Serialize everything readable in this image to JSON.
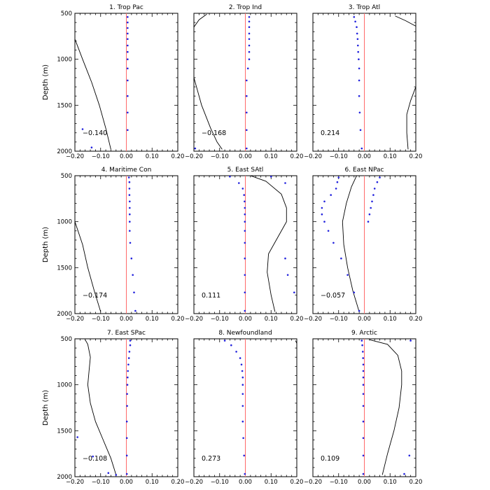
{
  "figure": {
    "ylabel": "Depth (m)",
    "xticks": [
      "−0.20",
      "−0.10",
      "0.00",
      "0.10",
      "0.20"
    ],
    "yticks": [
      "500",
      "1000",
      "1500",
      "2000"
    ]
  },
  "colors": {
    "zero_line": "#ff6a6a",
    "dots": "#2222dd",
    "curve": "#000000",
    "axes": "#000000"
  },
  "chart_data": [
    {
      "type": "line",
      "title": "1. Trop Pac",
      "annotation": "−0.140",
      "xlim": [
        -0.2,
        0.2
      ],
      "ylim": [
        2000,
        500
      ],
      "ylabel": "Depth (m)",
      "zero_line": 0,
      "series": [
        {
          "style": "line",
          "x": [
            -0.2,
            -0.17,
            -0.135,
            -0.105,
            -0.08,
            -0.06
          ],
          "y": [
            780,
            1000,
            1250,
            1500,
            1750,
            1980
          ]
        },
        {
          "style": "dots",
          "x": [
            0.005,
            0.005,
            0.005,
            0.005,
            0.005,
            0.005,
            0.005,
            0.005,
            0.005,
            0.005,
            0.005,
            0.005,
            0.005,
            -0.17,
            -0.135
          ],
          "y": [
            540,
            600,
            660,
            720,
            780,
            850,
            920,
            1000,
            1100,
            1230,
            1400,
            1580,
            1770,
            1760,
            1960
          ]
        }
      ]
    },
    {
      "type": "line",
      "title": "2. Trop Ind",
      "annotation": "−0.168",
      "xlim": [
        -0.2,
        0.2
      ],
      "ylim": [
        2000,
        500
      ],
      "ylabel": "",
      "zero_line": 0,
      "series": [
        {
          "style": "line",
          "x": [
            -0.2,
            -0.18,
            -0.15
          ],
          "y": [
            650,
            570,
            510
          ]
        },
        {
          "style": "line",
          "x": [
            -0.2,
            -0.17,
            -0.135,
            -0.11,
            -0.09
          ],
          "y": [
            1200,
            1500,
            1750,
            1900,
            1980
          ]
        },
        {
          "style": "dots",
          "x": [
            0.015,
            0.015,
            0.015,
            0.015,
            0.015,
            0.015,
            0.015,
            0.015,
            0.01,
            0.005,
            0.005,
            0.005,
            0.005,
            0.005,
            -0.195
          ],
          "y": [
            540,
            590,
            650,
            720,
            780,
            850,
            920,
            1000,
            1100,
            1230,
            1400,
            1580,
            1770,
            1970,
            1970
          ]
        }
      ]
    },
    {
      "type": "line",
      "title": "3. Trop Atl",
      "annotation": "0.214",
      "xlim": [
        -0.2,
        0.2
      ],
      "ylim": [
        2000,
        500
      ],
      "ylabel": "",
      "zero_line": 0,
      "series": [
        {
          "style": "line",
          "x": [
            0.12,
            0.16,
            0.2
          ],
          "y": [
            530,
            580,
            640
          ]
        },
        {
          "style": "line",
          "x": [
            0.2,
            0.18,
            0.165,
            0.165,
            0.17
          ],
          "y": [
            1300,
            1450,
            1600,
            1800,
            1980
          ]
        },
        {
          "style": "dots",
          "x": [
            -0.04,
            -0.035,
            -0.03,
            -0.028,
            -0.026,
            -0.025,
            -0.024,
            -0.022,
            -0.02,
            -0.02,
            -0.02,
            -0.018,
            -0.015,
            -0.01
          ],
          "y": [
            540,
            590,
            650,
            720,
            780,
            850,
            920,
            1000,
            1100,
            1230,
            1400,
            1580,
            1770,
            1970
          ]
        }
      ]
    },
    {
      "type": "line",
      "title": "4. Maritime Con",
      "annotation": "−0.174",
      "xlim": [
        -0.2,
        0.2
      ],
      "ylim": [
        2000,
        500
      ],
      "ylabel": "Depth (m)",
      "zero_line": 0,
      "series": [
        {
          "style": "line",
          "x": [
            -0.2,
            -0.17,
            -0.15,
            -0.125,
            -0.1
          ],
          "y": [
            1000,
            1250,
            1500,
            1750,
            1980
          ]
        },
        {
          "style": "dots",
          "x": [
            0.01,
            0.012,
            0.012,
            0.012,
            0.013,
            0.013,
            0.013,
            0.013,
            0.013,
            0.015,
            0.02,
            0.025,
            0.03,
            0.035
          ],
          "y": [
            520,
            570,
            640,
            710,
            780,
            850,
            920,
            1000,
            1100,
            1230,
            1400,
            1580,
            1770,
            1970
          ]
        }
      ]
    },
    {
      "type": "line",
      "title": "5. East SAtl",
      "annotation": "0.111",
      "xlim": [
        -0.2,
        0.2
      ],
      "ylim": [
        2000,
        500
      ],
      "ylabel": "",
      "zero_line": 0,
      "series": [
        {
          "style": "line",
          "x": [
            0.02,
            0.08,
            0.14,
            0.16,
            0.16,
            0.13,
            0.09,
            0.085,
            0.1,
            0.115
          ],
          "y": [
            500,
            560,
            700,
            850,
            1000,
            1150,
            1350,
            1550,
            1800,
            1980
          ]
        },
        {
          "style": "dots",
          "x": [
            -0.06,
            -0.025,
            -0.01,
            -0.005,
            -0.003,
            -0.002,
            -0.002,
            -0.002,
            -0.002,
            -0.002,
            -0.002,
            -0.002,
            -0.002,
            -0.002,
            0.1,
            0.155,
            0.155,
            0.165,
            0.19
          ],
          "y": [
            510,
            580,
            640,
            710,
            780,
            850,
            920,
            1000,
            1100,
            1230,
            1400,
            1580,
            1770,
            1970,
            510,
            580,
            1400,
            1580,
            1770
          ]
        }
      ]
    },
    {
      "type": "line",
      "title": "6. East NPac",
      "annotation": "−0.057",
      "xlim": [
        -0.2,
        0.2
      ],
      "ylim": [
        2000,
        500
      ],
      "ylabel": "",
      "zero_line": 0,
      "series": [
        {
          "style": "line",
          "x": [
            -0.03,
            -0.05,
            -0.07,
            -0.085,
            -0.08,
            -0.065,
            -0.045,
            -0.02
          ],
          "y": [
            500,
            620,
            800,
            1000,
            1250,
            1500,
            1750,
            1980
          ]
        },
        {
          "style": "dots",
          "x": [
            -0.1,
            -0.105,
            -0.11,
            -0.13,
            -0.155,
            -0.165,
            -0.165,
            -0.155,
            -0.14,
            -0.12,
            -0.09,
            -0.065,
            -0.04,
            -0.02
          ],
          "y": [
            520,
            570,
            640,
            710,
            780,
            850,
            920,
            1000,
            1100,
            1230,
            1400,
            1580,
            1770,
            1970
          ]
        },
        {
          "style": "dots",
          "x": [
            0.06,
            0.05,
            0.04,
            0.035,
            0.03,
            0.025,
            0.02,
            0.015
          ],
          "y": [
            520,
            570,
            640,
            710,
            780,
            850,
            920,
            1000
          ]
        }
      ]
    },
    {
      "type": "line",
      "title": "7. East SPac",
      "annotation": "−0.108",
      "xlim": [
        -0.2,
        0.2
      ],
      "ylim": [
        2000,
        500
      ],
      "ylabel": "Depth (m)",
      "zero_line": 0,
      "series": [
        {
          "style": "line",
          "x": [
            -0.16,
            -0.15,
            -0.14,
            -0.145,
            -0.15,
            -0.14,
            -0.12,
            -0.09,
            -0.06,
            -0.04
          ],
          "y": [
            510,
            560,
            700,
            850,
            1000,
            1200,
            1400,
            1600,
            1800,
            1980
          ]
        },
        {
          "style": "dots",
          "x": [
            0.015,
            0.015,
            0.012,
            0.01,
            0.008,
            0.006,
            0.005,
            0.004,
            0.003,
            0.003,
            0.002,
            0.002,
            0.002,
            0.002,
            -0.19,
            -0.13,
            -0.07,
            -0.04
          ],
          "y": [
            520,
            570,
            640,
            710,
            780,
            850,
            920,
            1000,
            1100,
            1230,
            1400,
            1580,
            1770,
            1970,
            1570,
            1780,
            1960,
            1980
          ]
        }
      ]
    },
    {
      "type": "line",
      "title": "8. Newfoundland",
      "annotation": "0.273",
      "xlim": [
        -0.2,
        0.2
      ],
      "ylim": [
        2000,
        500
      ],
      "ylabel": "",
      "zero_line": 0,
      "series": [
        {
          "style": "line",
          "x": [
            0.195,
            0.2
          ],
          "y": [
            520,
            550
          ]
        },
        {
          "style": "dots",
          "x": [
            -0.08,
            -0.055,
            -0.035,
            -0.02,
            -0.015,
            -0.012,
            -0.01,
            -0.01,
            -0.01,
            -0.01,
            -0.01,
            -0.008,
            -0.005,
            -0.002
          ],
          "y": [
            520,
            570,
            640,
            710,
            780,
            850,
            920,
            1000,
            1100,
            1230,
            1400,
            1580,
            1770,
            1970
          ]
        }
      ]
    },
    {
      "type": "line",
      "title": "9. Arctic",
      "annotation": "0.109",
      "xlim": [
        -0.2,
        0.2
      ],
      "ylim": [
        2000,
        500
      ],
      "ylabel": "",
      "zero_line": 0,
      "series": [
        {
          "style": "line",
          "x": [
            0.02,
            0.09,
            0.13,
            0.145,
            0.145,
            0.135,
            0.115,
            0.09,
            0.07
          ],
          "y": [
            510,
            560,
            680,
            850,
            1000,
            1250,
            1500,
            1750,
            1980
          ]
        },
        {
          "style": "dots",
          "x": [
            -0.01,
            -0.008,
            -0.006,
            -0.005,
            -0.004,
            -0.004,
            -0.004,
            -0.004,
            -0.004,
            -0.004,
            -0.004,
            -0.004,
            -0.004,
            -0.004,
            0.18,
            0.175,
            0.155
          ],
          "y": [
            520,
            570,
            640,
            710,
            780,
            850,
            920,
            1000,
            1100,
            1230,
            1400,
            1580,
            1770,
            1970,
            520,
            1770,
            1970
          ]
        }
      ]
    }
  ]
}
